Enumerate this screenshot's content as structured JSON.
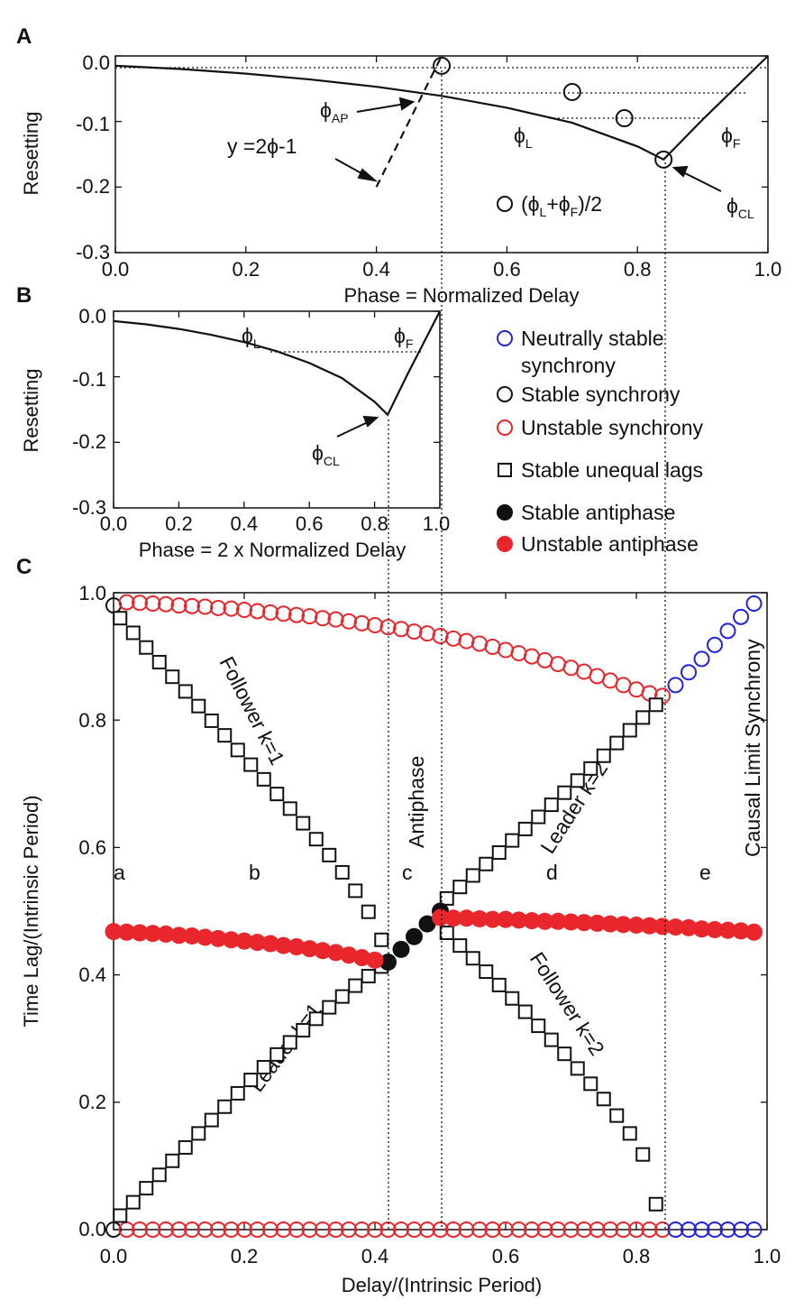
{
  "panels": {
    "A": {
      "label": "A",
      "xlabel": "Phase = Normalized Delay",
      "ylabel": "Resetting",
      "xticks": [
        "0.0",
        "0.2",
        "0.4",
        "0.6",
        "0.8",
        "1.0"
      ],
      "yticks": [
        "0.0",
        "-0.1",
        "-0.2",
        "-0.3"
      ],
      "annotations": {
        "phi_ap": "ϕ",
        "phi_ap_sub": "AP",
        "eq": "y =2ϕ-1",
        "phi_l": "ϕ",
        "phi_l_sub": "L",
        "phi_f": "ϕ",
        "phi_f_sub": "F",
        "phi_cl": "ϕ",
        "phi_cl_sub": "CL",
        "avg_a": "(ϕ",
        "avg_sub1": "L",
        "avg_b": "+ϕ",
        "avg_sub2": "F",
        "avg_c": ")/2"
      }
    },
    "B": {
      "label": "B",
      "xlabel": "Phase = 2 x Normalized Delay",
      "ylabel": "Resetting",
      "xticks": [
        "0.0",
        "0.2",
        "0.4",
        "0.6",
        "0.8",
        "1.0"
      ],
      "yticks": [
        "0.0",
        "-0.1",
        "-0.2",
        "-0.3"
      ],
      "annotations": {
        "phi_l": "ϕ",
        "phi_l_sub": "L",
        "phi_f": "ϕ",
        "phi_f_sub": "F",
        "phi_cl": "ϕ",
        "phi_cl_sub": "CL"
      }
    },
    "C": {
      "label": "C",
      "xlabel": "Delay/(Intrinsic Period)",
      "ylabel": "Time Lag/(Intrinsic Period)",
      "xticks": [
        "0.0",
        "0.2",
        "0.4",
        "0.6",
        "0.8",
        "1.0"
      ],
      "yticks": [
        "0.0",
        "0.2",
        "0.4",
        "0.6",
        "0.8",
        "1.0"
      ],
      "region_labels": [
        "a",
        "b",
        "c",
        "d",
        "e"
      ],
      "annotations": {
        "follower1": "Follower  k=1",
        "leader1": "Leader  k=1",
        "follower2": "Follower k=2",
        "leader2": "Leader   k=2",
        "antiphase": "Antiphase",
        "causal": "Causal Limit Synchrony"
      }
    }
  },
  "legend": {
    "items": [
      {
        "label": "Neutrally stable",
        "label2": "synchrony",
        "marker": "circle-open",
        "color": "#2222dd"
      },
      {
        "label": "Stable synchrony",
        "marker": "circle-open",
        "color": "#111111"
      },
      {
        "label": "Unstable synchrony",
        "marker": "circle-open",
        "color": "#e8262b"
      },
      {
        "label": "Stable unequal lags",
        "marker": "square-open",
        "color": "#111111"
      },
      {
        "label": "Stable antiphase",
        "marker": "circle-filled",
        "color": "#111111"
      },
      {
        "label": "Unstable antiphase",
        "marker": "circle-filled",
        "color": "#e8262b"
      }
    ]
  },
  "chart_data": [
    {
      "type": "line",
      "panel": "A",
      "title": "",
      "xlabel": "Phase = Normalized Delay",
      "ylabel": "Resetting",
      "xlim": [
        0,
        1
      ],
      "ylim": [
        -0.3,
        0.0
      ],
      "series": [
        {
          "name": "phase resetting curve",
          "x": [
            0.0,
            0.1,
            0.2,
            0.3,
            0.4,
            0.5,
            0.6,
            0.7,
            0.8,
            0.84,
            0.9,
            1.0
          ],
          "y": [
            -0.015,
            -0.02,
            -0.027,
            -0.036,
            -0.047,
            -0.061,
            -0.079,
            -0.102,
            -0.138,
            -0.158,
            -0.097,
            0.0
          ]
        },
        {
          "name": "y =2ϕ-1",
          "style": "dashed",
          "x": [
            0.4,
            0.5
          ],
          "y": [
            -0.2,
            0.0
          ]
        }
      ],
      "points": [
        {
          "name": "(ϕL+ϕF)/2",
          "x": 0.5,
          "y": -0.015
        },
        {
          "name": "(ϕL+ϕF)/2",
          "x": 0.7,
          "y": -0.055
        },
        {
          "name": "(ϕL+ϕF)/2",
          "x": 0.78,
          "y": -0.095
        },
        {
          "name": "(ϕL+ϕF)/2",
          "x": 0.84,
          "y": -0.158
        }
      ]
    },
    {
      "type": "line",
      "panel": "B",
      "title": "",
      "xlabel": "Phase = 2 x Normalized Delay",
      "ylabel": "Resetting",
      "xlim": [
        0,
        1
      ],
      "ylim": [
        -0.3,
        0.0
      ],
      "series": [
        {
          "name": "phase resetting curve",
          "x": [
            0.0,
            0.1,
            0.2,
            0.3,
            0.4,
            0.5,
            0.6,
            0.7,
            0.8,
            0.84,
            0.9,
            1.0
          ],
          "y": [
            -0.015,
            -0.02,
            -0.027,
            -0.036,
            -0.047,
            -0.061,
            -0.079,
            -0.102,
            -0.138,
            -0.158,
            -0.097,
            0.0
          ]
        }
      ]
    },
    {
      "type": "scatter",
      "panel": "C",
      "title": "",
      "xlabel": "Delay/(Intrinsic Period)",
      "ylabel": "Time Lag/(Intrinsic Period)",
      "xlim": [
        0,
        1
      ],
      "ylim": [
        0,
        1
      ],
      "reference_lines_x": [
        0.42,
        0.5,
        0.84
      ],
      "series": [
        {
          "name": "Stable synchrony",
          "marker": "circle-open",
          "color": "#111111",
          "x": [
            0.0,
            0.0
          ],
          "y": [
            0.98,
            0.0
          ]
        },
        {
          "name": "Unstable synchrony (upper)",
          "marker": "circle-open",
          "color": "#e8262b",
          "x": [
            0.02,
            0.04,
            0.06,
            0.08,
            0.1,
            0.12,
            0.14,
            0.16,
            0.18,
            0.2,
            0.22,
            0.24,
            0.26,
            0.28,
            0.3,
            0.32,
            0.34,
            0.36,
            0.38,
            0.4,
            0.42,
            0.44,
            0.46,
            0.48,
            0.5,
            0.52,
            0.54,
            0.56,
            0.58,
            0.6,
            0.62,
            0.64,
            0.66,
            0.68,
            0.7,
            0.72,
            0.74,
            0.76,
            0.78,
            0.8,
            0.82,
            0.84
          ],
          "y": [
            0.985,
            0.984,
            0.983,
            0.982,
            0.98,
            0.979,
            0.978,
            0.976,
            0.975,
            0.973,
            0.971,
            0.969,
            0.967,
            0.965,
            0.963,
            0.96,
            0.958,
            0.955,
            0.952,
            0.949,
            0.946,
            0.943,
            0.939,
            0.936,
            0.932,
            0.928,
            0.924,
            0.92,
            0.915,
            0.91,
            0.905,
            0.9,
            0.894,
            0.888,
            0.882,
            0.876,
            0.869,
            0.862,
            0.855,
            0.848,
            0.842,
            0.838
          ]
        },
        {
          "name": "Unstable synchrony (lower)",
          "marker": "circle-open",
          "color": "#e8262b",
          "x": [
            0.02,
            0.04,
            0.06,
            0.08,
            0.1,
            0.12,
            0.14,
            0.16,
            0.18,
            0.2,
            0.22,
            0.24,
            0.26,
            0.28,
            0.3,
            0.32,
            0.34,
            0.36,
            0.38,
            0.4,
            0.42,
            0.44,
            0.46,
            0.48,
            0.5,
            0.52,
            0.54,
            0.56,
            0.58,
            0.6,
            0.62,
            0.64,
            0.66,
            0.68,
            0.7,
            0.72,
            0.74,
            0.76,
            0.78,
            0.8,
            0.82,
            0.84
          ],
          "y": [
            0,
            0,
            0,
            0,
            0,
            0,
            0,
            0,
            0,
            0,
            0,
            0,
            0,
            0,
            0,
            0,
            0,
            0,
            0,
            0,
            0,
            0,
            0,
            0,
            0,
            0,
            0,
            0,
            0,
            0,
            0,
            0,
            0,
            0,
            0,
            0,
            0,
            0,
            0,
            0,
            0,
            0
          ]
        },
        {
          "name": "Neutrally stable synchrony (upper)",
          "marker": "circle-open",
          "color": "#2222dd",
          "x": [
            0.86,
            0.88,
            0.9,
            0.92,
            0.94,
            0.96,
            0.98
          ],
          "y": [
            0.855,
            0.875,
            0.896,
            0.918,
            0.94,
            0.962,
            0.983
          ]
        },
        {
          "name": "Neutrally stable synchrony (lower)",
          "marker": "circle-open",
          "color": "#2222dd",
          "x": [
            0.86,
            0.88,
            0.9,
            0.92,
            0.94,
            0.96,
            0.98
          ],
          "y": [
            0,
            0,
            0,
            0,
            0,
            0,
            0
          ]
        },
        {
          "name": "Stable unequal lags - Follower k=1",
          "marker": "square-open",
          "color": "#111111",
          "x": [
            0.01,
            0.03,
            0.05,
            0.07,
            0.09,
            0.11,
            0.13,
            0.15,
            0.17,
            0.19,
            0.21,
            0.23,
            0.25,
            0.27,
            0.29,
            0.31,
            0.33,
            0.35,
            0.37,
            0.39,
            0.41
          ],
          "y": [
            0.96,
            0.937,
            0.914,
            0.891,
            0.868,
            0.845,
            0.822,
            0.799,
            0.776,
            0.753,
            0.73,
            0.707,
            0.684,
            0.661,
            0.638,
            0.613,
            0.588,
            0.561,
            0.532,
            0.499,
            0.455
          ]
        },
        {
          "name": "Stable unequal lags - Leader k=1",
          "marker": "square-open",
          "color": "#111111",
          "x": [
            0.01,
            0.03,
            0.05,
            0.07,
            0.09,
            0.11,
            0.13,
            0.15,
            0.17,
            0.19,
            0.21,
            0.23,
            0.25,
            0.27,
            0.29,
            0.31,
            0.33,
            0.35,
            0.37,
            0.39,
            0.41
          ],
          "y": [
            0.022,
            0.043,
            0.065,
            0.086,
            0.108,
            0.129,
            0.151,
            0.172,
            0.193,
            0.214,
            0.235,
            0.255,
            0.275,
            0.294,
            0.313,
            0.331,
            0.349,
            0.366,
            0.383,
            0.398,
            0.413
          ]
        },
        {
          "name": "Stable unequal lags - Leader k=2",
          "marker": "square-open",
          "color": "#111111",
          "x": [
            0.51,
            0.53,
            0.55,
            0.57,
            0.59,
            0.61,
            0.63,
            0.65,
            0.67,
            0.69,
            0.71,
            0.73,
            0.75,
            0.77,
            0.79,
            0.81,
            0.83
          ],
          "y": [
            0.52,
            0.538,
            0.556,
            0.574,
            0.592,
            0.611,
            0.629,
            0.648,
            0.667,
            0.686,
            0.705,
            0.724,
            0.744,
            0.764,
            0.784,
            0.804,
            0.824
          ]
        },
        {
          "name": "Stable unequal lags - Follower k=2",
          "marker": "square-open",
          "color": "#111111",
          "x": [
            0.51,
            0.53,
            0.55,
            0.57,
            0.59,
            0.61,
            0.63,
            0.65,
            0.67,
            0.69,
            0.71,
            0.73,
            0.75,
            0.77,
            0.79,
            0.81,
            0.83
          ],
          "y": [
            0.466,
            0.446,
            0.426,
            0.405,
            0.384,
            0.363,
            0.342,
            0.32,
            0.298,
            0.276,
            0.253,
            0.229,
            0.205,
            0.179,
            0.151,
            0.118,
            0.04
          ]
        },
        {
          "name": "Stable antiphase",
          "marker": "circle-filled",
          "color": "#111111",
          "x": [
            0.42,
            0.44,
            0.46,
            0.48,
            0.5
          ],
          "y": [
            0.42,
            0.44,
            0.46,
            0.48,
            0.5
          ]
        },
        {
          "name": "Unstable antiphase (a-b)",
          "marker": "circle-filled",
          "color": "#e8262b",
          "x": [
            0.0,
            0.02,
            0.04,
            0.06,
            0.08,
            0.1,
            0.12,
            0.14,
            0.16,
            0.18,
            0.2,
            0.22,
            0.24,
            0.26,
            0.28,
            0.3,
            0.32,
            0.34,
            0.36,
            0.38,
            0.4
          ],
          "y": [
            0.468,
            0.467,
            0.466,
            0.465,
            0.464,
            0.462,
            0.461,
            0.459,
            0.457,
            0.455,
            0.453,
            0.451,
            0.449,
            0.446,
            0.444,
            0.441,
            0.438,
            0.435,
            0.431,
            0.427,
            0.423
          ]
        },
        {
          "name": "Unstable antiphase (d-e)",
          "marker": "circle-filled",
          "color": "#e8262b",
          "x": [
            0.5,
            0.52,
            0.54,
            0.56,
            0.58,
            0.6,
            0.62,
            0.64,
            0.66,
            0.68,
            0.7,
            0.72,
            0.74,
            0.76,
            0.78,
            0.8,
            0.82,
            0.84,
            0.86,
            0.88,
            0.9,
            0.92,
            0.94,
            0.96,
            0.98
          ],
          "y": [
            0.49,
            0.489,
            0.489,
            0.488,
            0.487,
            0.487,
            0.486,
            0.485,
            0.484,
            0.484,
            0.483,
            0.482,
            0.481,
            0.48,
            0.479,
            0.478,
            0.477,
            0.476,
            0.475,
            0.474,
            0.472,
            0.471,
            0.47,
            0.469,
            0.467
          ]
        }
      ]
    }
  ]
}
